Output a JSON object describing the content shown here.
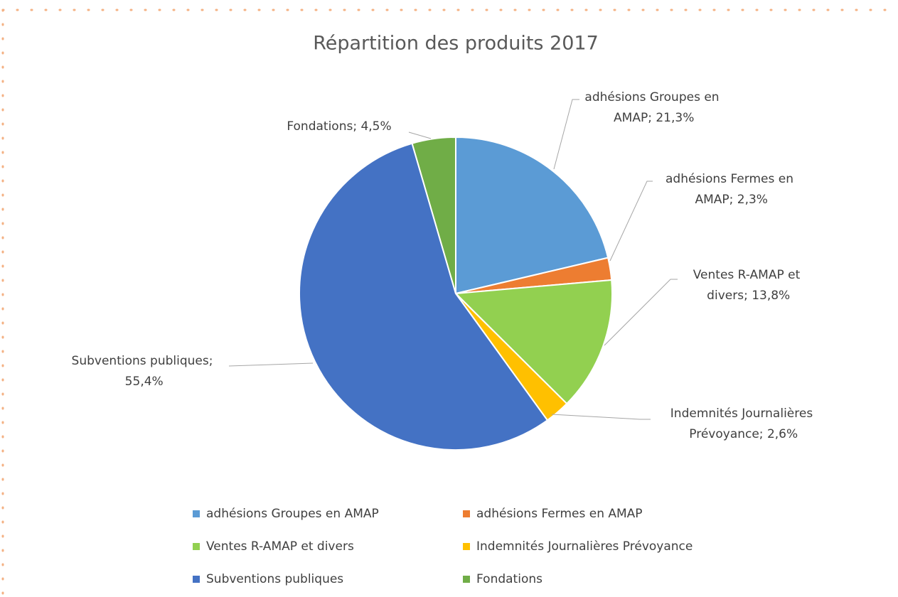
{
  "chart_data": {
    "type": "pie",
    "title": "Répartition des produits 2017",
    "categories": [
      "adhésions Groupes en AMAP",
      "adhésions Fermes en AMAP",
      "Ventes R-AMAP et divers",
      "Indemnités Journalières Prévoyance",
      "Subventions publiques",
      "Fondations"
    ],
    "values": [
      21.3,
      2.3,
      13.8,
      2.6,
      55.4,
      4.5
    ],
    "value_labels": [
      "adhésions Groupes en AMAP; 21,3%",
      "adhésions Fermes en AMAP; 2,3%",
      "Ventes R-AMAP et divers; 13,8%",
      "Indemnités Journalières Prévoyance; 2,6%",
      "Subventions publiques; 55,4%",
      "Fondations; 4,5%"
    ],
    "colors": [
      "#5b9bd5",
      "#ed7d31",
      "#92d050",
      "#ffc000",
      "#4472c4",
      "#70ad47"
    ],
    "legend": "bottom"
  }
}
